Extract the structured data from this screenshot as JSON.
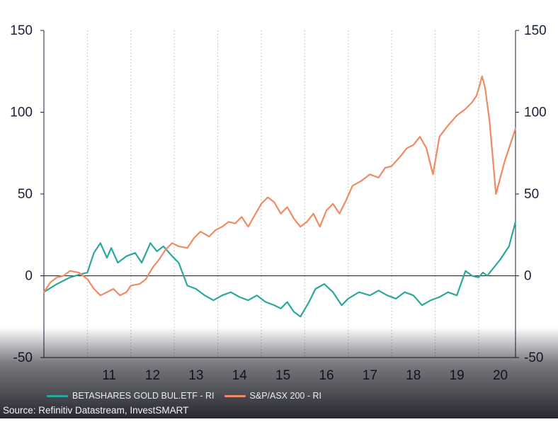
{
  "colors": {
    "gold": "#2aa89b",
    "asx": "#ef8a62",
    "axis_text": "#1c1f3a",
    "grid": "#b8bcc6"
  },
  "legend": {
    "gold_label": "BETASHARES GOLD BUL.ETF - RI",
    "asx_label": "S&P/ASX 200 - RI"
  },
  "source": "Source: Refinitiv Datastream, InvestSMART",
  "chart_data": {
    "type": "line",
    "title": "",
    "xlabel": "",
    "ylabel": "",
    "xlim": [
      2010.0,
      2020.85
    ],
    "ylim": [
      -50,
      150
    ],
    "grid": {
      "vertical": true,
      "horizontal": false
    },
    "legend_position": "bottom",
    "x_tick_labels": [
      "11",
      "12",
      "13",
      "14",
      "15",
      "16",
      "17",
      "18",
      "19",
      "20"
    ],
    "y_tick_labels": [
      "150",
      "100",
      "50",
      "0",
      "-50"
    ],
    "series": [
      {
        "name": "BETASHARES GOLD BUL.ETF - RI",
        "x": [
          2010.0,
          2010.3,
          2010.6,
          2010.85,
          2011.0,
          2011.15,
          2011.3,
          2011.45,
          2011.55,
          2011.7,
          2011.9,
          2012.1,
          2012.25,
          2012.45,
          2012.6,
          2012.75,
          2012.95,
          2013.1,
          2013.3,
          2013.5,
          2013.7,
          2013.9,
          2014.1,
          2014.3,
          2014.5,
          2014.7,
          2014.9,
          2015.1,
          2015.3,
          2015.45,
          2015.6,
          2015.75,
          2015.9,
          2016.1,
          2016.25,
          2016.45,
          2016.65,
          2016.85,
          2017.0,
          2017.25,
          2017.5,
          2017.7,
          2017.9,
          2018.1,
          2018.3,
          2018.5,
          2018.7,
          2018.9,
          2019.1,
          2019.3,
          2019.5,
          2019.7,
          2019.85,
          2020.0,
          2020.1,
          2020.2,
          2020.35,
          2020.5,
          2020.7,
          2020.85
        ],
        "y": [
          -10,
          -5,
          -1,
          1,
          2,
          14,
          20,
          11,
          17,
          8,
          12,
          14,
          8,
          20,
          15,
          18,
          12,
          8,
          -6,
          -8,
          -12,
          -15,
          -12,
          -10,
          -13,
          -15,
          -12,
          -16,
          -18,
          -20,
          -16,
          -22,
          -25,
          -16,
          -8,
          -5,
          -10,
          -18,
          -14,
          -10,
          -12,
          -9,
          -12,
          -14,
          -10,
          -12,
          -18,
          -15,
          -13,
          -10,
          -12,
          3,
          0,
          -1,
          2,
          0,
          5,
          10,
          18,
          33
        ]
      },
      {
        "name": "S&P/ASX 200 - RI",
        "x": [
          2010.0,
          2010.15,
          2010.3,
          2010.45,
          2010.6,
          2010.8,
          2011.0,
          2011.15,
          2011.3,
          2011.45,
          2011.6,
          2011.75,
          2011.9,
          2012.0,
          2012.2,
          2012.35,
          2012.5,
          2012.65,
          2012.8,
          2012.95,
          2013.1,
          2013.3,
          2013.45,
          2013.6,
          2013.8,
          2013.95,
          2014.1,
          2014.25,
          2014.4,
          2014.55,
          2014.7,
          2014.85,
          2015.0,
          2015.15,
          2015.3,
          2015.45,
          2015.6,
          2015.75,
          2015.9,
          2016.05,
          2016.2,
          2016.35,
          2016.5,
          2016.65,
          2016.8,
          2016.95,
          2017.1,
          2017.3,
          2017.5,
          2017.7,
          2017.85,
          2018.0,
          2018.2,
          2018.35,
          2018.5,
          2018.65,
          2018.8,
          2018.95,
          2019.1,
          2019.3,
          2019.5,
          2019.7,
          2019.85,
          2019.95,
          2020.02,
          2020.08,
          2020.15,
          2020.25,
          2020.4,
          2020.6,
          2020.85
        ],
        "y": [
          -10,
          -4,
          -1,
          0,
          3,
          2,
          -2,
          -8,
          -12,
          -10,
          -8,
          -12,
          -10,
          -6,
          -5,
          -2,
          5,
          10,
          16,
          20,
          18,
          17,
          23,
          27,
          24,
          28,
          30,
          33,
          32,
          36,
          30,
          37,
          44,
          48,
          45,
          38,
          42,
          35,
          30,
          33,
          38,
          30,
          40,
          44,
          38,
          46,
          55,
          58,
          62,
          60,
          66,
          67,
          73,
          78,
          80,
          85,
          78,
          62,
          85,
          92,
          98,
          102,
          106,
          110,
          116,
          122,
          115,
          95,
          50,
          70,
          90
        ]
      }
    ]
  }
}
